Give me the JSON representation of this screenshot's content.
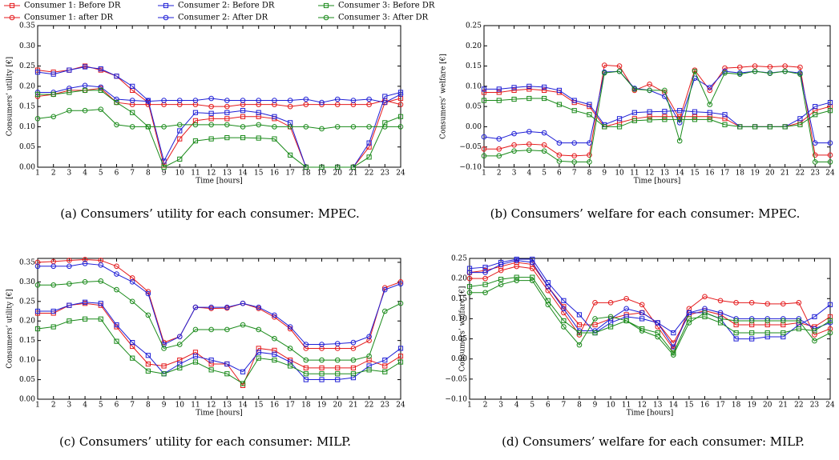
{
  "legend": [
    {
      "name": "Consumer 1: Before DR",
      "color": "#e41a1c",
      "marker": "square"
    },
    {
      "name": "Consumer 1: after DR",
      "color": "#e41a1c",
      "marker": "circle"
    },
    {
      "name": "Consumer 2: Before DR",
      "color": "#1f1fd6",
      "marker": "square"
    },
    {
      "name": "Consumer 2: After DR",
      "color": "#1f1fd6",
      "marker": "circle"
    },
    {
      "name": "Consumer 3: Before DR",
      "color": "#1a8a1a",
      "marker": "square"
    },
    {
      "name": "Consumer 3: After DR",
      "color": "#1a8a1a",
      "marker": "circle"
    }
  ],
  "chart_data": [
    {
      "type": "line",
      "caption": "(a) Consumers’ utility for each consumer: MPEC.",
      "xlabel": "Time [hours]",
      "ylabel": "Consumers’ utility [€]",
      "x": [
        1,
        2,
        3,
        4,
        5,
        6,
        7,
        8,
        9,
        10,
        11,
        12,
        13,
        14,
        15,
        16,
        17,
        18,
        19,
        20,
        21,
        22,
        23,
        24
      ],
      "xlim": [
        1,
        24
      ],
      "xticks": [
        1,
        2,
        3,
        4,
        5,
        6,
        7,
        8,
        9,
        10,
        11,
        12,
        13,
        14,
        15,
        16,
        17,
        18,
        19,
        20,
        21,
        22,
        23,
        24
      ],
      "ylim": [
        0,
        0.35
      ],
      "yticks": [
        {
          "value": 0,
          "label": "0.00"
        },
        {
          "value": 0.05,
          "label": "0.05"
        },
        {
          "value": 0.1,
          "label": "0.10"
        },
        {
          "value": 0.15,
          "label": "0.15"
        },
        {
          "value": 0.2,
          "label": "0.20"
        },
        {
          "value": 0.25,
          "label": "0.25"
        },
        {
          "value": 0.3,
          "label": "0.30"
        },
        {
          "value": 0.35,
          "label": "0.35"
        }
      ],
      "series": [
        {
          "values": [
            0.24,
            0.235,
            0.24,
            0.25,
            0.24,
            0.225,
            0.19,
            0.16,
            0.005,
            0.07,
            0.115,
            0.12,
            0.12,
            0.125,
            0.125,
            0.12,
            0.1,
            0,
            0,
            0,
            0,
            0.05,
            0.16,
            0.17
          ]
        },
        {
          "values": [
            0.175,
            0.18,
            0.19,
            0.19,
            0.195,
            0.16,
            0.155,
            0.155,
            0.155,
            0.155,
            0.155,
            0.15,
            0.15,
            0.155,
            0.155,
            0.155,
            0.15,
            0.155,
            0.155,
            0.155,
            0.155,
            0.155,
            0.165,
            0.155
          ]
        },
        {
          "values": [
            0.235,
            0.23,
            0.24,
            0.248,
            0.243,
            0.225,
            0.2,
            0.165,
            0.015,
            0.09,
            0.135,
            0.133,
            0.135,
            0.14,
            0.135,
            0.125,
            0.11,
            0,
            0,
            0,
            0,
            0.06,
            0.175,
            0.185
          ]
        },
        {
          "values": [
            0.185,
            0.185,
            0.195,
            0.202,
            0.198,
            0.168,
            0.165,
            0.163,
            0.165,
            0.165,
            0.165,
            0.17,
            0.165,
            0.165,
            0.165,
            0.165,
            0.165,
            0.168,
            0.16,
            0.168,
            0.165,
            0.168,
            0.16,
            0.18
          ]
        },
        {
          "values": [
            0.18,
            0.18,
            0.185,
            0.19,
            0.19,
            0.16,
            0.135,
            0.1,
            0,
            0.02,
            0.065,
            0.07,
            0.073,
            0.073,
            0.072,
            0.07,
            0.03,
            0,
            0,
            0,
            0,
            0.025,
            0.11,
            0.125
          ]
        },
        {
          "values": [
            0.12,
            0.125,
            0.14,
            0.14,
            0.143,
            0.105,
            0.1,
            0.1,
            0.1,
            0.105,
            0.105,
            0.105,
            0.105,
            0.1,
            0.105,
            0.1,
            0.1,
            0.1,
            0.095,
            0.1,
            0.1,
            0.1,
            0.1,
            0.1
          ]
        }
      ]
    },
    {
      "type": "line",
      "caption": "(b) Consumers’ welfare for each consumer: MPEC.",
      "xlabel": "Time [hours]",
      "ylabel": "Consumers’ welfare [€]",
      "x": [
        1,
        2,
        3,
        4,
        5,
        6,
        7,
        8,
        9,
        10,
        11,
        12,
        13,
        14,
        15,
        16,
        17,
        18,
        19,
        20,
        21,
        22,
        23,
        24
      ],
      "xlim": [
        1,
        24
      ],
      "xticks": [
        1,
        2,
        3,
        4,
        5,
        6,
        7,
        8,
        9,
        10,
        11,
        12,
        13,
        14,
        15,
        16,
        17,
        18,
        19,
        20,
        21,
        22,
        23,
        24
      ],
      "ylim": [
        -0.1,
        0.25
      ],
      "yticks": [
        {
          "value": -0.1,
          "label": "−0.10"
        },
        {
          "value": -0.05,
          "label": "−0.05"
        },
        {
          "value": 0,
          "label": "0.00"
        },
        {
          "value": 0.05,
          "label": "0.05"
        },
        {
          "value": 0.1,
          "label": "0.10"
        },
        {
          "value": 0.15,
          "label": "0.15"
        },
        {
          "value": 0.2,
          "label": "0.20"
        },
        {
          "value": 0.25,
          "label": "0.25"
        }
      ],
      "series": [
        {
          "values": [
            0.085,
            0.085,
            0.09,
            0.093,
            0.09,
            0.085,
            0.06,
            0.05,
            0,
            0.01,
            0.02,
            0.025,
            0.025,
            0.025,
            0.025,
            0.025,
            0.02,
            0,
            0,
            0,
            0,
            0.01,
            0.04,
            0.05
          ]
        },
        {
          "values": [
            -0.055,
            -0.055,
            -0.045,
            -0.043,
            -0.045,
            -0.07,
            -0.072,
            -0.07,
            0.152,
            0.15,
            0.09,
            0.105,
            0.085,
            0.02,
            0.14,
            0.09,
            0.145,
            0.147,
            0.15,
            0.148,
            0.15,
            0.147,
            -0.07,
            -0.07
          ]
        },
        {
          "values": [
            0.093,
            0.093,
            0.097,
            0.1,
            0.098,
            0.09,
            0.065,
            0.055,
            0.005,
            0.02,
            0.035,
            0.037,
            0.038,
            0.04,
            0.037,
            0.035,
            0.03,
            0,
            0,
            0,
            0,
            0.02,
            0.05,
            0.06
          ]
        },
        {
          "values": [
            -0.025,
            -0.03,
            -0.017,
            -0.012,
            -0.015,
            -0.04,
            -0.04,
            -0.04,
            0.135,
            0.137,
            0.095,
            0.09,
            0.075,
            0.01,
            0.12,
            0.097,
            0.137,
            0.133,
            0.137,
            0.133,
            0.137,
            0.133,
            -0.04,
            -0.04
          ]
        },
        {
          "values": [
            0.065,
            0.065,
            0.068,
            0.07,
            0.07,
            0.055,
            0.04,
            0.03,
            0,
            0,
            0.015,
            0.017,
            0.018,
            0.018,
            0.018,
            0.018,
            0.005,
            0,
            0,
            0,
            0,
            0.005,
            0.03,
            0.04
          ]
        },
        {
          "values": [
            -0.072,
            -0.072,
            -0.06,
            -0.058,
            -0.06,
            -0.085,
            -0.087,
            -0.087,
            0.133,
            0.137,
            0.093,
            0.09,
            0.09,
            -0.035,
            0.137,
            0.055,
            0.133,
            0.13,
            0.137,
            0.132,
            0.137,
            0.13,
            -0.087,
            -0.087
          ]
        }
      ]
    },
    {
      "type": "line",
      "caption": "(c) Consumers’ utility for each consumer: MILP.",
      "xlabel": "Time [hours]",
      "ylabel": "Consumers’ utility [€]",
      "x": [
        1,
        2,
        3,
        4,
        5,
        6,
        7,
        8,
        9,
        10,
        11,
        12,
        13,
        14,
        15,
        16,
        17,
        18,
        19,
        20,
        21,
        22,
        23,
        24
      ],
      "xlim": [
        1,
        24
      ],
      "xticks": [
        1,
        2,
        3,
        4,
        5,
        6,
        7,
        8,
        9,
        10,
        11,
        12,
        13,
        14,
        15,
        16,
        17,
        18,
        19,
        20,
        21,
        22,
        23,
        24
      ],
      "ylim": [
        0,
        0.36
      ],
      "yticks": [
        {
          "value": 0,
          "label": "0.00"
        },
        {
          "value": 0.05,
          "label": "0.05"
        },
        {
          "value": 0.1,
          "label": "0.10"
        },
        {
          "value": 0.15,
          "label": "0.15"
        },
        {
          "value": 0.2,
          "label": "0.20"
        },
        {
          "value": 0.25,
          "label": "0.25"
        },
        {
          "value": 0.3,
          "label": "0.30"
        },
        {
          "value": 0.35,
          "label": "0.35"
        }
      ],
      "series": [
        {
          "values": [
            0.22,
            0.22,
            0.24,
            0.245,
            0.24,
            0.185,
            0.135,
            0.09,
            0.085,
            0.1,
            0.12,
            0.09,
            0.09,
            0.035,
            0.13,
            0.125,
            0.1,
            0.08,
            0.08,
            0.08,
            0.08,
            0.1,
            0.085,
            0.11
          ]
        },
        {
          "values": [
            0.35,
            0.352,
            0.355,
            0.357,
            0.355,
            0.34,
            0.31,
            0.275,
            0.145,
            0.16,
            0.235,
            0.232,
            0.233,
            0.245,
            0.232,
            0.21,
            0.18,
            0.13,
            0.13,
            0.13,
            0.13,
            0.15,
            0.285,
            0.3
          ]
        },
        {
          "values": [
            0.225,
            0.225,
            0.24,
            0.248,
            0.245,
            0.19,
            0.145,
            0.112,
            0.065,
            0.09,
            0.11,
            0.1,
            0.09,
            0.07,
            0.12,
            0.115,
            0.095,
            0.05,
            0.05,
            0.05,
            0.055,
            0.085,
            0.1,
            0.13
          ]
        },
        {
          "values": [
            0.34,
            0.34,
            0.34,
            0.347,
            0.343,
            0.32,
            0.3,
            0.27,
            0.14,
            0.16,
            0.235,
            0.235,
            0.235,
            0.245,
            0.235,
            0.215,
            0.185,
            0.14,
            0.14,
            0.142,
            0.145,
            0.16,
            0.28,
            0.295
          ]
        },
        {
          "values": [
            0.18,
            0.185,
            0.2,
            0.205,
            0.205,
            0.148,
            0.105,
            0.072,
            0.065,
            0.08,
            0.095,
            0.075,
            0.065,
            0.04,
            0.105,
            0.1,
            0.085,
            0.065,
            0.065,
            0.065,
            0.065,
            0.075,
            0.07,
            0.095
          ]
        },
        {
          "values": [
            0.292,
            0.292,
            0.295,
            0.3,
            0.302,
            0.28,
            0.25,
            0.215,
            0.13,
            0.14,
            0.178,
            0.178,
            0.178,
            0.19,
            0.178,
            0.155,
            0.13,
            0.1,
            0.1,
            0.1,
            0.1,
            0.11,
            0.225,
            0.245
          ]
        }
      ]
    },
    {
      "type": "line",
      "caption": "(d) Consumers’ welfare for each consumer: MILP.",
      "xlabel": "Time [hours]",
      "ylabel": "Consumers’ welfare [€]",
      "x": [
        1,
        2,
        3,
        4,
        5,
        6,
        7,
        8,
        9,
        10,
        11,
        12,
        13,
        14,
        15,
        16,
        17,
        18,
        19,
        20,
        21,
        22,
        23,
        24
      ],
      "xlim": [
        1,
        24
      ],
      "xticks": [
        1,
        2,
        3,
        4,
        5,
        6,
        7,
        8,
        9,
        10,
        11,
        12,
        13,
        14,
        15,
        16,
        17,
        18,
        19,
        20,
        21,
        22,
        23,
        24
      ],
      "ylim": [
        -0.1,
        0.25
      ],
      "yticks": [
        {
          "value": -0.1,
          "label": "−0.10"
        },
        {
          "value": -0.05,
          "label": "−0.05"
        },
        {
          "value": 0,
          "label": "0.00"
        },
        {
          "value": 0.05,
          "label": "0.05"
        },
        {
          "value": 0.1,
          "label": "0.10"
        },
        {
          "value": 0.15,
          "label": "0.15"
        },
        {
          "value": 0.2,
          "label": "0.20"
        },
        {
          "value": 0.25,
          "label": "0.25"
        }
      ],
      "series": [
        {
          "values": [
            0.215,
            0.22,
            0.23,
            0.24,
            0.235,
            0.18,
            0.13,
            0.085,
            0.085,
            0.1,
            0.11,
            0.115,
            0.09,
            0.04,
            0.11,
            0.12,
            0.11,
            0.085,
            0.085,
            0.085,
            0.085,
            0.09,
            0.08,
            0.105
          ]
        },
        {
          "values": [
            0.2,
            0.2,
            0.22,
            0.23,
            0.225,
            0.17,
            0.115,
            0.06,
            0.14,
            0.14,
            0.15,
            0.135,
            0.08,
            0.025,
            0.125,
            0.155,
            0.145,
            0.14,
            0.14,
            0.137,
            0.137,
            0.14,
            0.06,
            0.075
          ]
        },
        {
          "values": [
            0.225,
            0.228,
            0.24,
            0.248,
            0.248,
            0.19,
            0.145,
            0.11,
            0.065,
            0.09,
            0.105,
            0.1,
            0.09,
            0.065,
            0.115,
            0.115,
            0.1,
            0.05,
            0.05,
            0.055,
            0.055,
            0.085,
            0.105,
            0.135
          ]
        },
        {
          "values": [
            0.215,
            0.215,
            0.235,
            0.245,
            0.24,
            0.18,
            0.125,
            0.07,
            0.07,
            0.1,
            0.125,
            0.115,
            0.09,
            0.03,
            0.115,
            0.125,
            0.115,
            0.1,
            0.1,
            0.1,
            0.1,
            0.1,
            0.075,
            0.09
          ]
        },
        {
          "values": [
            0.18,
            0.185,
            0.198,
            0.203,
            0.203,
            0.145,
            0.095,
            0.065,
            0.065,
            0.08,
            0.095,
            0.075,
            0.065,
            0.015,
            0.1,
            0.105,
            0.09,
            0.065,
            0.065,
            0.065,
            0.065,
            0.075,
            0.07,
            0.095
          ]
        },
        {
          "values": [
            0.165,
            0.165,
            0.185,
            0.195,
            0.195,
            0.135,
            0.08,
            0.035,
            0.1,
            0.105,
            0.095,
            0.07,
            0.055,
            0.01,
            0.09,
            0.115,
            0.1,
            0.095,
            0.095,
            0.095,
            0.095,
            0.095,
            0.045,
            0.065
          ]
        }
      ]
    }
  ]
}
